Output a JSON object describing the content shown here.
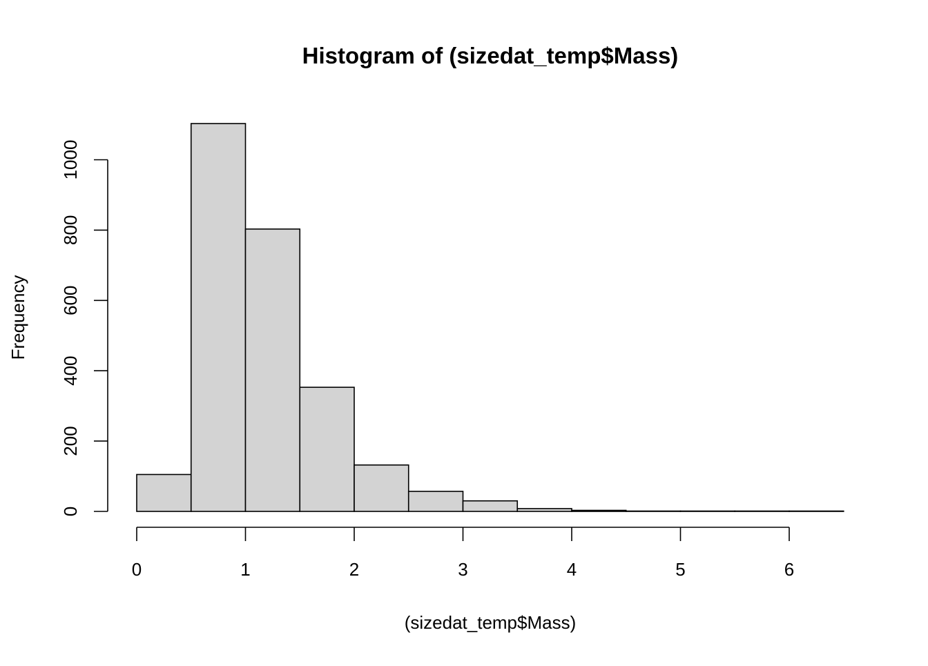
{
  "colors": {
    "bar_fill": "#d3d3d3",
    "bar_stroke": "#000000",
    "axis": "#000000",
    "background": "#ffffff"
  },
  "chart_data": {
    "type": "bar",
    "title": "Histogram of (sizedat_temp$Mass)",
    "xlabel": "(sizedat_temp$Mass)",
    "ylabel": "Frequency",
    "bin_edges": [
      0,
      0.5,
      1,
      1.5,
      2,
      2.5,
      3,
      3.5,
      4,
      4.5,
      5,
      5.5,
      6,
      6.5
    ],
    "values": [
      105,
      1103,
      803,
      353,
      132,
      57,
      30,
      8,
      3,
      1,
      1,
      1,
      1
    ],
    "xlim": [
      0,
      6.5
    ],
    "ylim": [
      0,
      1103
    ],
    "x_ticks": [
      0,
      1,
      2,
      3,
      4,
      5,
      6
    ],
    "x_tick_labels": [
      "0",
      "1",
      "2",
      "3",
      "4",
      "5",
      "6"
    ],
    "y_ticks": [
      0,
      200,
      400,
      600,
      800,
      1000
    ],
    "y_tick_labels": [
      "0",
      "200",
      "400",
      "600",
      "800",
      "1000"
    ],
    "grid": false,
    "legend": "none"
  }
}
